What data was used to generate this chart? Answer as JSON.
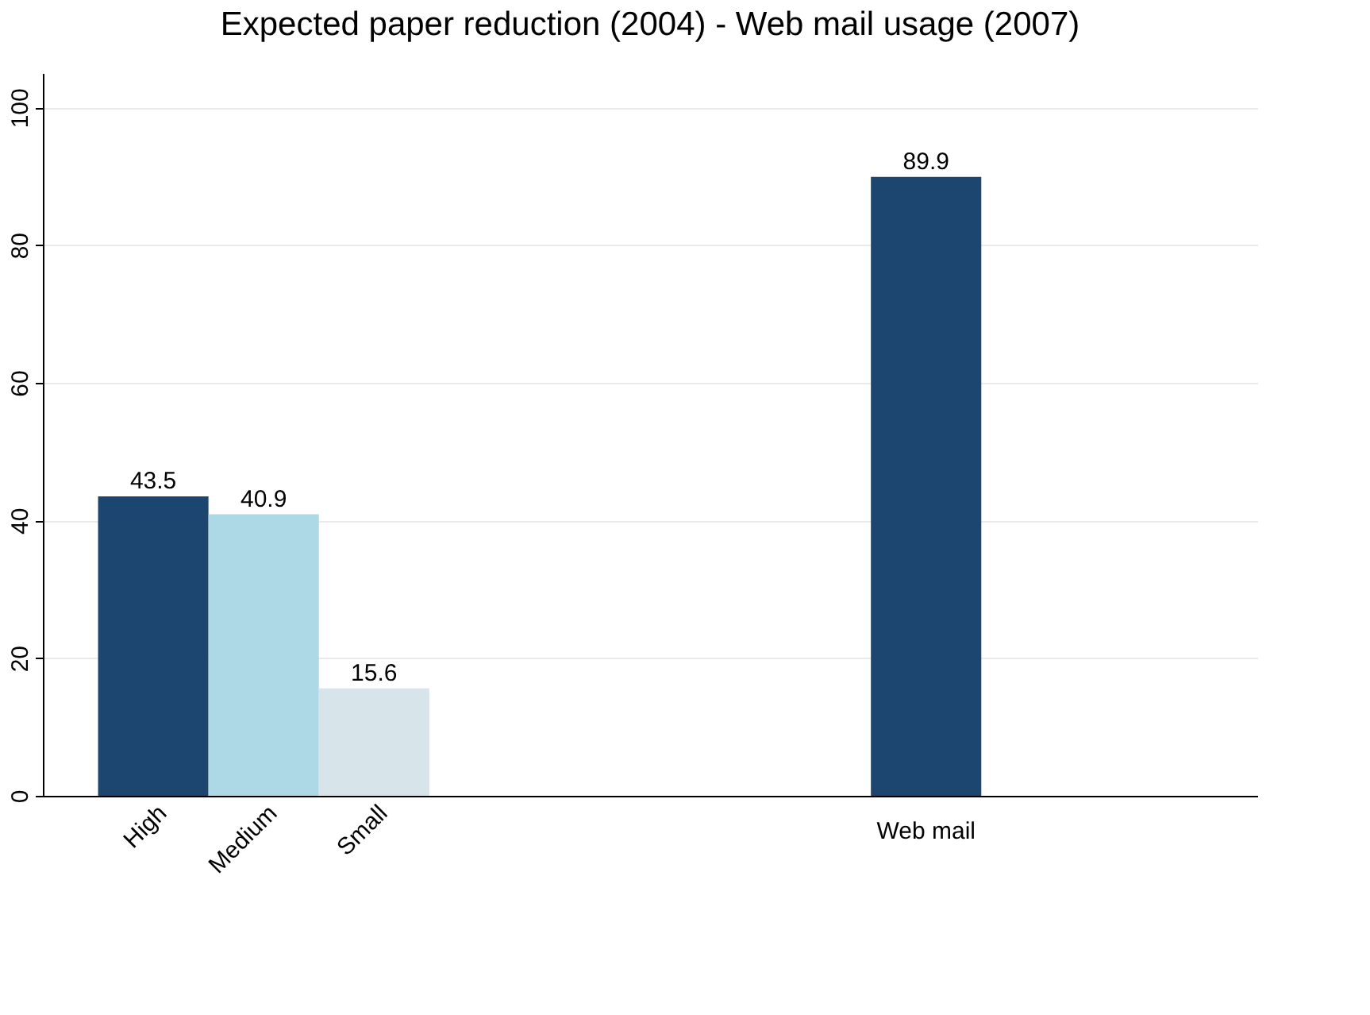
{
  "chart_data": {
    "type": "bar",
    "title": "Expected paper reduction (2004) - Web mail usage (2007)",
    "categories": [
      "High",
      "Medium",
      "Small",
      null,
      null,
      null,
      null,
      "Web mail",
      null,
      null
    ],
    "values": [
      43.5,
      40.9,
      15.6,
      null,
      null,
      null,
      null,
      89.9,
      null,
      null
    ],
    "colors": [
      "#1c466f",
      "#add8e6",
      "#d7e4ea",
      null,
      null,
      null,
      null,
      "#1c466f",
      null,
      null
    ],
    "ylim": [
      0,
      105
    ],
    "yticks": [
      0,
      20,
      40,
      60,
      80,
      100
    ],
    "grid": "y",
    "data_labels": true
  }
}
